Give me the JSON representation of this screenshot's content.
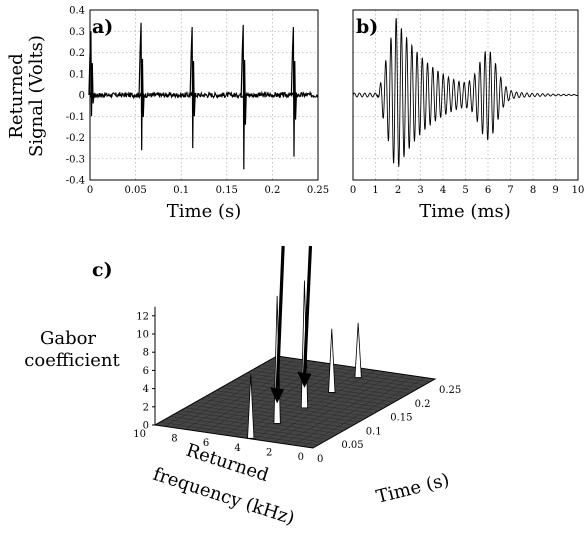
{
  "chart_data": [
    {
      "panel_label": "a)",
      "type": "line",
      "xlabel": "Time (s)",
      "ylabel_lines": [
        "Returned",
        "Signal (Volts)"
      ],
      "xlim": [
        0,
        0.25
      ],
      "ylim": [
        -0.4,
        0.4
      ],
      "x_ticks": [
        "0",
        "0.05",
        "0.1",
        "0.15",
        "0.2",
        "0.25"
      ],
      "y_ticks": [
        "0.4",
        "0.3",
        "0.2",
        "0.1",
        "0",
        "-0.1",
        "-0.2",
        "-0.3",
        "-0.4"
      ],
      "grid": true,
      "series": [
        {
          "noise_amplitude": 0.012,
          "spikes": [
            {
              "x": 0.001,
              "y_max": 0.3,
              "y_min": -0.1
            },
            {
              "x": 0.056,
              "y_max": 0.34,
              "y_min": -0.26
            },
            {
              "x": 0.112,
              "y_max": 0.32,
              "y_min": -0.25
            },
            {
              "x": 0.168,
              "y_max": 0.33,
              "y_min": -0.35
            },
            {
              "x": 0.223,
              "y_max": 0.32,
              "y_min": -0.29
            }
          ]
        }
      ]
    },
    {
      "panel_label": "b)",
      "type": "line",
      "xlabel": "Time (ms)",
      "xlim": [
        0,
        10
      ],
      "x_ticks": [
        "0",
        "1",
        "2",
        "3",
        "4",
        "5",
        "6",
        "7",
        "8",
        "9",
        "10"
      ],
      "grid": true,
      "series": [
        {
          "onset": 1.1,
          "peak_time": 1.9,
          "peak_amplitude": 1.0,
          "decay_ms": 1.6,
          "second_burst_time": 6.0,
          "second_burst_amplitude": 0.5,
          "carrier_khz": 4.3
        }
      ]
    },
    {
      "panel_label": "c)",
      "type": "surface",
      "zlabel_lines": [
        "Gabor",
        "coefficient"
      ],
      "ylabel_lines": [
        "Returned",
        "frequency (kHz)"
      ],
      "xlabel": "Time (s)",
      "z_ticks": [
        "0",
        "2",
        "4",
        "6",
        "8",
        "10",
        "12"
      ],
      "freq_ticks": [
        "10",
        "8",
        "6",
        "4",
        "2",
        "0"
      ],
      "time_ticks": [
        "0",
        "0.05",
        "0.1",
        "0.15",
        "0.2",
        "0.25"
      ],
      "zlim": [
        0,
        13
      ],
      "freq_lim": [
        0,
        10
      ],
      "time_lim": [
        0,
        0.25
      ],
      "peaks": [
        {
          "time": 0.002,
          "freq": 4.0,
          "value": 7
        },
        {
          "time": 0.056,
          "freq": 4.0,
          "value": 14
        },
        {
          "time": 0.112,
          "freq": 4.0,
          "value": 14
        },
        {
          "time": 0.168,
          "freq": 4.0,
          "value": 7
        },
        {
          "time": 0.222,
          "freq": 4.0,
          "value": 6
        }
      ],
      "arrows_at_times": [
        0.056,
        0.112
      ]
    }
  ]
}
